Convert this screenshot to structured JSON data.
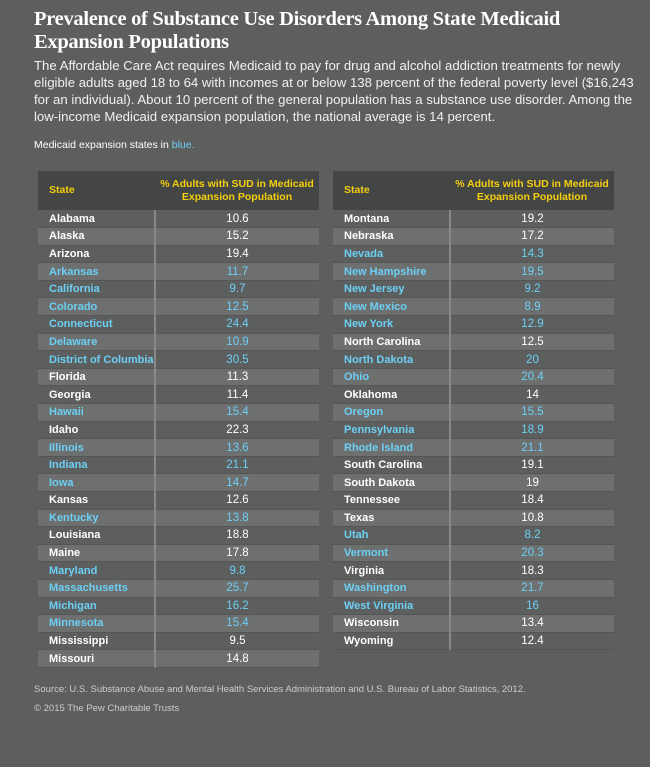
{
  "title": "Prevalence of Substance Use Disorders Among State Medicaid Expansion Populations",
  "intro": "The Affordable Care Act requires Medicaid to pay for drug and alcohol addiction treatments for newly eligible adults aged 18 to 64 with incomes at or below 138 percent of the federal poverty level ($16,243 for an individual). About 10 percent of the general population has a substance use disorder. Among the low-income Medicaid expansion population, the national average is 14 percent.",
  "note_prefix": "Medicaid expansion states in ",
  "note_blue": "blue.",
  "colors": {
    "expansion": "#6cd0f5",
    "header_text": "#f3cf0c",
    "header_bg": "#444545",
    "background": "#5d5e5e"
  },
  "source": "Source: U.S. Substance Abuse and Mental Health Services Administration and U.S. Bureau of Labor Statistics, 2012.",
  "copyright": "© 2015 The Pew Charitable Trusts",
  "chart_data": {
    "type": "table",
    "columns": [
      "State",
      "% Adults with SUD in Medicaid Expansion Population"
    ],
    "rows": [
      [
        "Alabama",
        10.6,
        false
      ],
      [
        "Alaska",
        15.2,
        false
      ],
      [
        "Arizona",
        19.4,
        false
      ],
      [
        "Arkansas",
        11.7,
        true
      ],
      [
        "California",
        9.7,
        true
      ],
      [
        "Colorado",
        12.5,
        true
      ],
      [
        "Connecticut",
        24.4,
        true
      ],
      [
        "Delaware",
        10.9,
        true
      ],
      [
        "District of Columbia",
        30.5,
        true
      ],
      [
        "Florida",
        11.3,
        false
      ],
      [
        "Georgia",
        11.4,
        false
      ],
      [
        "Hawaii",
        15.4,
        true
      ],
      [
        "Idaho",
        22.3,
        false
      ],
      [
        "Illinois",
        13.6,
        true
      ],
      [
        "Indiana",
        21.1,
        true
      ],
      [
        "Iowa",
        14.7,
        true
      ],
      [
        "Kansas",
        12.6,
        false
      ],
      [
        "Kentucky",
        13.8,
        true
      ],
      [
        "Louisiana",
        18.8,
        false
      ],
      [
        "Maine",
        17.8,
        false
      ],
      [
        "Maryland",
        9.8,
        true
      ],
      [
        "Massachusetts",
        25.7,
        true
      ],
      [
        "Michigan",
        16.2,
        true
      ],
      [
        "Minnesota",
        15.4,
        true
      ],
      [
        "Mississippi",
        9.5,
        false
      ],
      [
        "Missouri",
        14.8,
        false
      ],
      [
        "Montana",
        19.2,
        false
      ],
      [
        "Nebraska",
        17.2,
        false
      ],
      [
        "Nevada",
        14.3,
        true
      ],
      [
        "New Hampshire",
        19.5,
        true
      ],
      [
        "New Jersey",
        9.2,
        true
      ],
      [
        "New Mexico",
        8.9,
        true
      ],
      [
        "New York",
        12.9,
        true
      ],
      [
        "North Carolina",
        12.5,
        false
      ],
      [
        "North Dakota",
        20,
        true
      ],
      [
        "Ohio",
        20.4,
        true
      ],
      [
        "Oklahoma",
        14,
        false
      ],
      [
        "Oregon",
        15.5,
        true
      ],
      [
        "Pennsylvania",
        18.9,
        true
      ],
      [
        "Rhode Island",
        21.1,
        true
      ],
      [
        "South Carolina",
        19.1,
        false
      ],
      [
        "South Dakota",
        19,
        false
      ],
      [
        "Tennessee",
        18.4,
        false
      ],
      [
        "Texas",
        10.8,
        false
      ],
      [
        "Utah",
        8.2,
        true
      ],
      [
        "Vermont",
        20.3,
        true
      ],
      [
        "Virginia",
        18.3,
        false
      ],
      [
        "Washington",
        21.7,
        true
      ],
      [
        "West Virginia",
        16,
        true
      ],
      [
        "Wisconsin",
        13.4,
        false
      ],
      [
        "Wyoming",
        12.4,
        false
      ]
    ]
  }
}
